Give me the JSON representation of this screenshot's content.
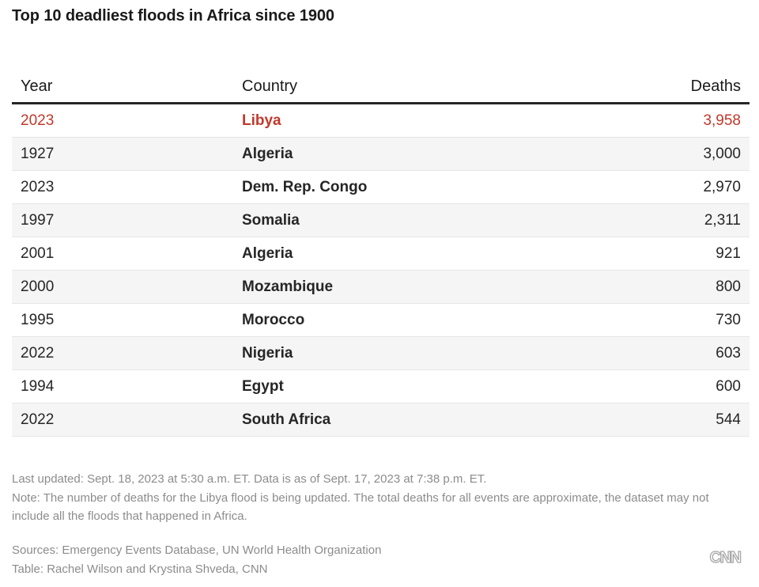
{
  "title": "Top 10 deadliest floods in Africa since 1900",
  "highlight_color": "#c0392b",
  "chart_data": {
    "type": "table",
    "title": "Top 10 deadliest floods in Africa since 1900",
    "columns": [
      "Year",
      "Country",
      "Deaths"
    ],
    "rows": [
      {
        "year": "2023",
        "country": "Libya",
        "deaths": "3,958",
        "highlight": true
      },
      {
        "year": "1927",
        "country": "Algeria",
        "deaths": "3,000",
        "highlight": false
      },
      {
        "year": "2023",
        "country": "Dem. Rep. Congo",
        "deaths": "2,970",
        "highlight": false
      },
      {
        "year": "1997",
        "country": "Somalia",
        "deaths": "2,311",
        "highlight": false
      },
      {
        "year": "2001",
        "country": "Algeria",
        "deaths": "921",
        "highlight": false
      },
      {
        "year": "2000",
        "country": "Mozambique",
        "deaths": "800",
        "highlight": false
      },
      {
        "year": "1995",
        "country": "Morocco",
        "deaths": "730",
        "highlight": false
      },
      {
        "year": "2022",
        "country": "Nigeria",
        "deaths": "603",
        "highlight": false
      },
      {
        "year": "1994",
        "country": "Egypt",
        "deaths": "600",
        "highlight": false
      },
      {
        "year": "2022",
        "country": "South Africa",
        "deaths": "544",
        "highlight": false
      }
    ]
  },
  "footer": {
    "last_updated": "Last updated: Sept. 18, 2023 at 5:30 a.m. ET. Data is as of Sept. 17, 2023 at 7:38 p.m. ET.",
    "note": "Note: The number of deaths for the Libya flood is being updated. The total deaths for all events are approximate, the dataset may not include all the floods that happened in Africa.",
    "sources": "Sources: Emergency Events Database, UN World Health Organization",
    "credit": "Table: Rachel Wilson and Krystina Shveda, CNN",
    "logo_text": "CNN"
  }
}
